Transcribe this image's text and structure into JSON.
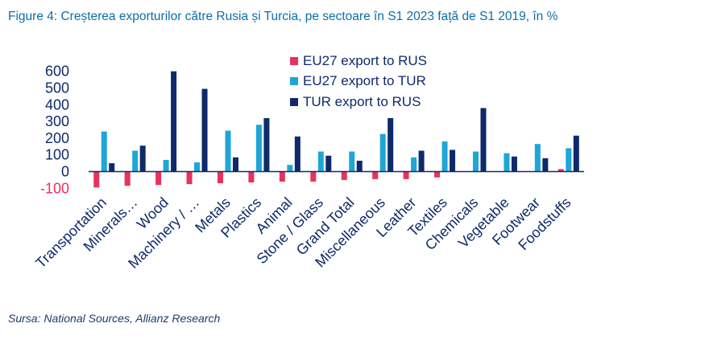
{
  "header": {
    "title": "Figure 4: Creșterea exporturilor către Rusia și Turcia, pe sectoare în S1 2023 față de S1 2019, în %"
  },
  "footer": {
    "source": "Sursa: National Sources, Allianz Research"
  },
  "colors": {
    "eu_rus": "#e8325c",
    "eu_tur": "#1ea6d6",
    "tur_rus": "#0e2a6b",
    "positive_tick": "#0e2a6b",
    "negative_tick": "#e8325c"
  },
  "chart_data": {
    "type": "bar",
    "title": "",
    "xlabel": "",
    "ylabel": "",
    "ylim": [
      -100,
      600
    ],
    "yticks": [
      600,
      500,
      400,
      300,
      200,
      100,
      0,
      -100
    ],
    "ytick_labels": [
      "600",
      "500",
      "400",
      "300",
      "200",
      "100",
      "0",
      "-100"
    ],
    "grid": false,
    "legend_position": "top-center",
    "categories": [
      "Transportation",
      "Minerals…",
      "Wood",
      "Machinery / …",
      "Metals",
      "Plastics",
      "Animal",
      "Stone / Glass",
      "Grand Total",
      "Miscellaneous",
      "Leather",
      "Textiles",
      "Chemicals",
      "Vegetable",
      "Footwear",
      "Foodstuffs"
    ],
    "series": [
      {
        "name": "EU27 export to RUS",
        "values": [
          -95,
          -85,
          -80,
          -75,
          -70,
          -65,
          -60,
          -60,
          -50,
          -45,
          -45,
          -35,
          0,
          0,
          0,
          15
        ]
      },
      {
        "name": "EU27 export to TUR",
        "values": [
          240,
          125,
          70,
          55,
          245,
          280,
          40,
          120,
          120,
          225,
          85,
          180,
          120,
          110,
          165,
          140
        ]
      },
      {
        "name": "TUR export to RUS",
        "values": [
          50,
          155,
          600,
          495,
          85,
          320,
          210,
          95,
          65,
          320,
          125,
          130,
          380,
          90,
          80,
          215
        ]
      }
    ]
  }
}
